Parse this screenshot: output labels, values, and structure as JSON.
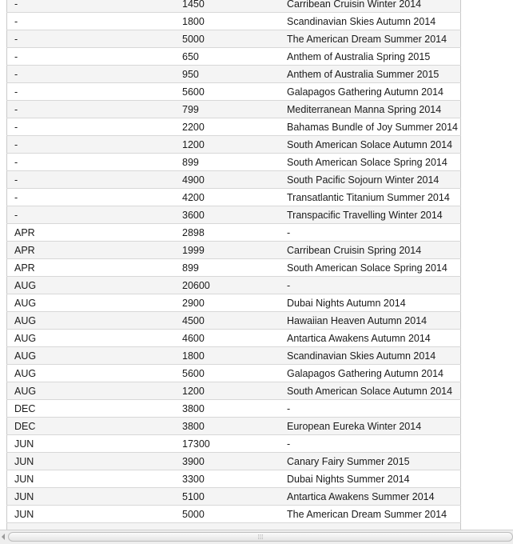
{
  "table": {
    "rows": [
      {
        "month": "-",
        "price": "1450",
        "cruise": "Carribean Cruisin Winter 2014"
      },
      {
        "month": "-",
        "price": "1800",
        "cruise": "Scandinavian Skies Autumn 2014"
      },
      {
        "month": "-",
        "price": "5000",
        "cruise": "The American Dream Summer 2014"
      },
      {
        "month": "-",
        "price": "650",
        "cruise": "Anthem of Australia Spring 2015"
      },
      {
        "month": "-",
        "price": "950",
        "cruise": "Anthem of Australia Summer 2015"
      },
      {
        "month": "-",
        "price": "5600",
        "cruise": "Galapagos Gathering Autumn 2014"
      },
      {
        "month": "-",
        "price": "799",
        "cruise": "Mediterranean Manna Spring 2014"
      },
      {
        "month": "-",
        "price": "2200",
        "cruise": "Bahamas Bundle of Joy Summer 2014"
      },
      {
        "month": "-",
        "price": "1200",
        "cruise": "South American Solace Autumn 2014"
      },
      {
        "month": "-",
        "price": "899",
        "cruise": "South American Solace Spring 2014"
      },
      {
        "month": "-",
        "price": "4900",
        "cruise": "South Pacific Sojourn Winter 2014"
      },
      {
        "month": "-",
        "price": "4200",
        "cruise": "Transatlantic Titanium Summer 2014"
      },
      {
        "month": "-",
        "price": "3600",
        "cruise": "Transpacific Travelling Winter 2014"
      },
      {
        "month": "APR",
        "price": "2898",
        "cruise": "-"
      },
      {
        "month": "APR",
        "price": "1999",
        "cruise": "Carribean Cruisin Spring 2014"
      },
      {
        "month": "APR",
        "price": "899",
        "cruise": "South American Solace Spring 2014"
      },
      {
        "month": "AUG",
        "price": "20600",
        "cruise": "-"
      },
      {
        "month": "AUG",
        "price": "2900",
        "cruise": "Dubai Nights Autumn 2014"
      },
      {
        "month": "AUG",
        "price": "4500",
        "cruise": "Hawaiian Heaven Autumn 2014"
      },
      {
        "month": "AUG",
        "price": "4600",
        "cruise": "Antartica Awakens Autumn 2014"
      },
      {
        "month": "AUG",
        "price": "1800",
        "cruise": "Scandinavian Skies Autumn 2014"
      },
      {
        "month": "AUG",
        "price": "5600",
        "cruise": "Galapagos Gathering Autumn 2014"
      },
      {
        "month": "AUG",
        "price": "1200",
        "cruise": "South American Solace Autumn 2014"
      },
      {
        "month": "DEC",
        "price": "3800",
        "cruise": "-"
      },
      {
        "month": "DEC",
        "price": "3800",
        "cruise": "European Eureka Winter 2014"
      },
      {
        "month": "JUN",
        "price": "17300",
        "cruise": "-"
      },
      {
        "month": "JUN",
        "price": "3900",
        "cruise": "Canary Fairy Summer 2015"
      },
      {
        "month": "JUN",
        "price": "3300",
        "cruise": "Dubai Nights Summer 2014"
      },
      {
        "month": "JUN",
        "price": "5100",
        "cruise": "Antartica Awakens Summer 2014"
      },
      {
        "month": "JUN",
        "price": "5000",
        "cruise": "The American Dream Summer 2014"
      },
      {
        "month": "",
        "price": "",
        "cruise": ""
      }
    ]
  },
  "scrollbar": {
    "grip_glyph": "⁞⁞⁞",
    "arrow_icon": "arrow-left-icon"
  }
}
